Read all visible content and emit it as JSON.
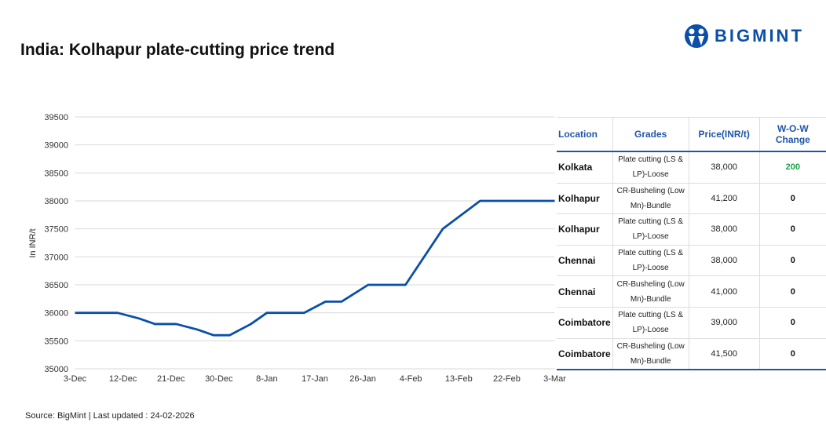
{
  "title": "India: Kolhapur plate-cutting price trend",
  "logo": {
    "text": "BIGMINT",
    "color": "#0a4fa8"
  },
  "footer": "Source: BigMint | Last updated : 24-02-2026",
  "chart_data": {
    "type": "line",
    "title": "",
    "xlabel": "",
    "ylabel": "In INR/t",
    "ylim": [
      35000,
      39500
    ],
    "yticks": [
      35000,
      35500,
      36000,
      36500,
      37000,
      37500,
      38000,
      38500,
      39000,
      39500
    ],
    "xticks": [
      "3-Dec",
      "12-Dec",
      "21-Dec",
      "30-Dec",
      "8-Jan",
      "17-Jan",
      "26-Jan",
      "4-Feb",
      "13-Feb",
      "22-Feb",
      "3-Mar"
    ],
    "grid": true,
    "color": "#0a4fa8",
    "series": [
      {
        "x": [
          "3-Dec",
          "11-Dec",
          "15-Dec",
          "18-Dec",
          "22-Dec",
          "26-Dec",
          "29-Dec",
          "1-Jan",
          "5-Jan",
          "8-Jan",
          "15-Jan",
          "19-Jan",
          "22-Jan",
          "27-Jan",
          "3-Feb",
          "10-Feb",
          "17-Feb",
          "3-Mar"
        ],
        "values": [
          36000,
          36000,
          35900,
          35800,
          35800,
          35700,
          35600,
          35600,
          35800,
          36000,
          36000,
          36200,
          36200,
          36500,
          36500,
          37500,
          38000,
          38000
        ]
      }
    ]
  },
  "table": {
    "headers": [
      "Location",
      "Grades",
      "Price(INR/t)",
      "W-O-W Change"
    ],
    "rows": [
      {
        "location": "Kolkata",
        "grade": "Plate cutting (LS & LP)-Loose",
        "price": "38,000",
        "change": "200",
        "change_color": "#1aa34a"
      },
      {
        "location": "Kolhapur",
        "grade": "CR-Busheling (Low Mn)-Bundle",
        "price": "41,200",
        "change": "0",
        "change_color": "#111111"
      },
      {
        "location": "Kolhapur",
        "grade": "Plate cutting (LS & LP)-Loose",
        "price": "38,000",
        "change": "0",
        "change_color": "#111111"
      },
      {
        "location": "Chennai",
        "grade": "Plate cutting (LS & LP)-Loose",
        "price": "38,000",
        "change": "0",
        "change_color": "#111111"
      },
      {
        "location": "Chennai",
        "grade": "CR-Busheling (Low Mn)-Bundle",
        "price": "41,000",
        "change": "0",
        "change_color": "#111111"
      },
      {
        "location": "Coimbatore",
        "grade": "Plate cutting (LS & LP)-Loose",
        "price": "39,000",
        "change": "0",
        "change_color": "#111111"
      },
      {
        "location": "Coimbatore",
        "grade": "CR-Busheling (Low Mn)-Bundle",
        "price": "41,500",
        "change": "0",
        "change_color": "#111111"
      }
    ]
  }
}
